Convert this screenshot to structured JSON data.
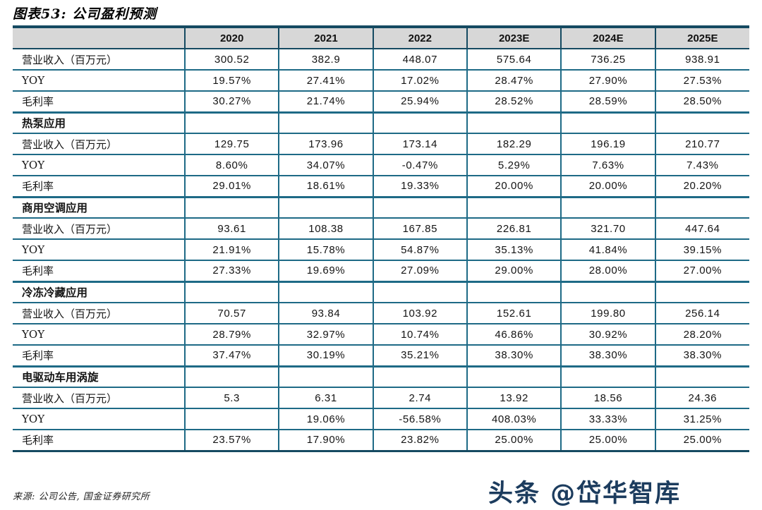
{
  "title": "图表53: 公司盈利预测",
  "table": {
    "columns": [
      "2020",
      "2021",
      "2022",
      "2023E",
      "2024E",
      "2025E"
    ],
    "rows": [
      {
        "type": "data",
        "label": "营业收入（百万元）",
        "values": [
          "300.52",
          "382.9",
          "448.07",
          "575.64",
          "736.25",
          "938.91"
        ]
      },
      {
        "type": "data",
        "label": "YOY",
        "values": [
          "19.57%",
          "27.41%",
          "17.02%",
          "28.47%",
          "27.90%",
          "27.53%"
        ]
      },
      {
        "type": "data",
        "label": "毛利率",
        "values": [
          "30.27%",
          "21.74%",
          "25.94%",
          "28.52%",
          "28.59%",
          "28.50%"
        ]
      },
      {
        "type": "section",
        "label": "热泵应用",
        "values": [
          "",
          "",
          "",
          "",
          "",
          ""
        ]
      },
      {
        "type": "data",
        "label": "营业收入（百万元）",
        "values": [
          "129.75",
          "173.96",
          "173.14",
          "182.29",
          "196.19",
          "210.77"
        ]
      },
      {
        "type": "data",
        "label": "YOY",
        "values": [
          "8.60%",
          "34.07%",
          "-0.47%",
          "5.29%",
          "7.63%",
          "7.43%"
        ]
      },
      {
        "type": "data",
        "label": "毛利率",
        "values": [
          "29.01%",
          "18.61%",
          "19.33%",
          "20.00%",
          "20.00%",
          "20.20%"
        ]
      },
      {
        "type": "section",
        "label": "商用空调应用",
        "values": [
          "",
          "",
          "",
          "",
          "",
          ""
        ]
      },
      {
        "type": "data",
        "label": "营业收入（百万元）",
        "values": [
          "93.61",
          "108.38",
          "167.85",
          "226.81",
          "321.70",
          "447.64"
        ]
      },
      {
        "type": "data",
        "label": "YOY",
        "values": [
          "21.91%",
          "15.78%",
          "54.87%",
          "35.13%",
          "41.84%",
          "39.15%"
        ]
      },
      {
        "type": "data",
        "label": "毛利率",
        "values": [
          "27.33%",
          "19.69%",
          "27.09%",
          "29.00%",
          "28.00%",
          "27.00%"
        ]
      },
      {
        "type": "section",
        "label": "冷冻冷藏应用",
        "values": [
          "",
          "",
          "",
          "",
          "",
          ""
        ]
      },
      {
        "type": "data",
        "label": "营业收入（百万元）",
        "values": [
          "70.57",
          "93.84",
          "103.92",
          "152.61",
          "199.80",
          "256.14"
        ]
      },
      {
        "type": "data",
        "label": "YOY",
        "values": [
          "28.79%",
          "32.97%",
          "10.74%",
          "46.86%",
          "30.92%",
          "28.20%"
        ]
      },
      {
        "type": "data",
        "label": "毛利率",
        "values": [
          "37.47%",
          "30.19%",
          "35.21%",
          "38.30%",
          "38.30%",
          "38.30%"
        ]
      },
      {
        "type": "section",
        "label": "电驱动车用涡旋",
        "values": [
          "",
          "",
          "",
          "",
          "",
          ""
        ]
      },
      {
        "type": "data",
        "label": "营业收入（百万元）",
        "values": [
          "5.3",
          "6.31",
          "2.74",
          "13.92",
          "18.56",
          "24.36"
        ]
      },
      {
        "type": "data",
        "label": "YOY",
        "values": [
          "",
          "19.06%",
          "-56.58%",
          "408.03%",
          "33.33%",
          "31.25%"
        ]
      },
      {
        "type": "data",
        "label": "毛利率",
        "values": [
          "23.57%",
          "17.90%",
          "23.82%",
          "25.00%",
          "25.00%",
          "25.00%"
        ]
      }
    ]
  },
  "footer": {
    "source": "来源: 公司公告, 国金证券研究所"
  },
  "watermark": {
    "text": "头条 @岱华智库"
  },
  "colors": {
    "border_thin": "#1e6a86",
    "border_thick": "#154a61",
    "header_background": "#d7d7d7",
    "watermark": "#1c3c5e"
  }
}
